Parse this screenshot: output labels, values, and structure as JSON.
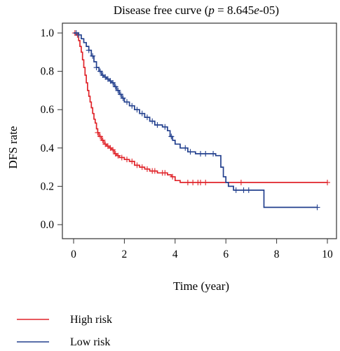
{
  "chart_data": {
    "type": "line",
    "title_prefix": "Disease free curve (",
    "title_p": "p",
    "title_mid": " = 8.645",
    "title_e": "e",
    "title_suffix": "-05)",
    "xlabel": "Time (year)",
    "ylabel": "DFS rate",
    "xlim": [
      0,
      10
    ],
    "ylim": [
      0,
      1
    ],
    "x_ticks": [
      0,
      2,
      4,
      6,
      8,
      10
    ],
    "y_ticks": [
      0.0,
      0.2,
      0.4,
      0.6,
      0.8,
      1.0
    ],
    "x_tick_labels": [
      "0",
      "2",
      "4",
      "6",
      "8",
      "10"
    ],
    "y_tick_labels": [
      "0.0",
      "0.2",
      "0.4",
      "0.6",
      "0.8",
      "1.0"
    ],
    "legend_placement": "bottom-left",
    "series": [
      {
        "name": "High risk",
        "color": "#e0242a",
        "steps": [
          [
            0,
            1.0
          ],
          [
            0.1,
            0.99
          ],
          [
            0.2,
            0.96
          ],
          [
            0.25,
            0.93
          ],
          [
            0.3,
            0.9
          ],
          [
            0.35,
            0.86
          ],
          [
            0.4,
            0.82
          ],
          [
            0.45,
            0.78
          ],
          [
            0.5,
            0.74
          ],
          [
            0.55,
            0.7
          ],
          [
            0.6,
            0.67
          ],
          [
            0.65,
            0.64
          ],
          [
            0.7,
            0.61
          ],
          [
            0.75,
            0.58
          ],
          [
            0.8,
            0.55
          ],
          [
            0.85,
            0.53
          ],
          [
            0.9,
            0.5
          ],
          [
            0.95,
            0.48
          ],
          [
            1.0,
            0.46
          ],
          [
            1.1,
            0.44
          ],
          [
            1.2,
            0.42
          ],
          [
            1.3,
            0.41
          ],
          [
            1.4,
            0.4
          ],
          [
            1.5,
            0.39
          ],
          [
            1.6,
            0.37
          ],
          [
            1.7,
            0.36
          ],
          [
            1.8,
            0.35
          ],
          [
            2.0,
            0.34
          ],
          [
            2.2,
            0.33
          ],
          [
            2.4,
            0.31
          ],
          [
            2.6,
            0.3
          ],
          [
            2.8,
            0.29
          ],
          [
            3.0,
            0.28
          ],
          [
            3.3,
            0.27
          ],
          [
            3.7,
            0.26
          ],
          [
            3.85,
            0.25
          ],
          [
            4.0,
            0.23
          ],
          [
            4.2,
            0.22
          ],
          [
            6.0,
            0.22
          ],
          [
            10.0,
            0.22
          ]
        ],
        "censors": [
          [
            0.05,
            1.0
          ],
          [
            0.15,
            0.99
          ],
          [
            0.95,
            0.48
          ],
          [
            1.05,
            0.46
          ],
          [
            1.15,
            0.44
          ],
          [
            1.25,
            0.42
          ],
          [
            1.35,
            0.41
          ],
          [
            1.45,
            0.4
          ],
          [
            1.55,
            0.39
          ],
          [
            1.65,
            0.37
          ],
          [
            1.75,
            0.36
          ],
          [
            1.9,
            0.35
          ],
          [
            2.1,
            0.34
          ],
          [
            2.3,
            0.33
          ],
          [
            2.5,
            0.31
          ],
          [
            2.7,
            0.3
          ],
          [
            2.9,
            0.29
          ],
          [
            3.1,
            0.28
          ],
          [
            3.2,
            0.28
          ],
          [
            3.5,
            0.27
          ],
          [
            3.6,
            0.27
          ],
          [
            3.9,
            0.25
          ],
          [
            4.5,
            0.22
          ],
          [
            4.7,
            0.22
          ],
          [
            4.9,
            0.22
          ],
          [
            5.0,
            0.22
          ],
          [
            5.2,
            0.22
          ],
          [
            6.6,
            0.22
          ],
          [
            10.0,
            0.22
          ]
        ]
      },
      {
        "name": "Low risk",
        "color": "#23408e",
        "steps": [
          [
            0,
            1.0
          ],
          [
            0.2,
            0.99
          ],
          [
            0.3,
            0.97
          ],
          [
            0.4,
            0.95
          ],
          [
            0.5,
            0.93
          ],
          [
            0.6,
            0.91
          ],
          [
            0.7,
            0.88
          ],
          [
            0.8,
            0.85
          ],
          [
            0.9,
            0.82
          ],
          [
            1.0,
            0.8
          ],
          [
            1.1,
            0.78
          ],
          [
            1.2,
            0.77
          ],
          [
            1.3,
            0.76
          ],
          [
            1.4,
            0.75
          ],
          [
            1.5,
            0.74
          ],
          [
            1.6,
            0.72
          ],
          [
            1.7,
            0.7
          ],
          [
            1.8,
            0.68
          ],
          [
            1.9,
            0.66
          ],
          [
            2.0,
            0.64
          ],
          [
            2.2,
            0.62
          ],
          [
            2.4,
            0.6
          ],
          [
            2.6,
            0.58
          ],
          [
            2.8,
            0.56
          ],
          [
            3.0,
            0.54
          ],
          [
            3.2,
            0.52
          ],
          [
            3.5,
            0.51
          ],
          [
            3.7,
            0.49
          ],
          [
            3.8,
            0.46
          ],
          [
            3.9,
            0.44
          ],
          [
            4.0,
            0.42
          ],
          [
            4.2,
            0.4
          ],
          [
            4.5,
            0.38
          ],
          [
            4.8,
            0.37
          ],
          [
            5.5,
            0.37
          ],
          [
            5.6,
            0.36
          ],
          [
            5.8,
            0.3
          ],
          [
            5.9,
            0.25
          ],
          [
            6.0,
            0.22
          ],
          [
            6.1,
            0.2
          ],
          [
            6.3,
            0.18
          ],
          [
            7.5,
            0.18
          ],
          [
            7.5,
            0.09
          ],
          [
            9.6,
            0.09
          ]
        ],
        "censors": [
          [
            0.1,
            1.0
          ],
          [
            0.2,
            0.99
          ],
          [
            0.6,
            0.91
          ],
          [
            0.75,
            0.88
          ],
          [
            0.9,
            0.82
          ],
          [
            1.05,
            0.8
          ],
          [
            1.15,
            0.78
          ],
          [
            1.25,
            0.77
          ],
          [
            1.35,
            0.76
          ],
          [
            1.45,
            0.75
          ],
          [
            1.55,
            0.74
          ],
          [
            1.65,
            0.72
          ],
          [
            1.75,
            0.7
          ],
          [
            1.85,
            0.68
          ],
          [
            1.95,
            0.66
          ],
          [
            2.1,
            0.64
          ],
          [
            2.3,
            0.62
          ],
          [
            2.5,
            0.6
          ],
          [
            2.7,
            0.58
          ],
          [
            2.9,
            0.56
          ],
          [
            3.1,
            0.54
          ],
          [
            3.3,
            0.52
          ],
          [
            3.6,
            0.51
          ],
          [
            3.85,
            0.46
          ],
          [
            4.4,
            0.4
          ],
          [
            4.6,
            0.38
          ],
          [
            5.0,
            0.37
          ],
          [
            5.2,
            0.37
          ],
          [
            5.5,
            0.37
          ],
          [
            6.4,
            0.18
          ],
          [
            6.7,
            0.18
          ],
          [
            6.9,
            0.18
          ],
          [
            9.6,
            0.09
          ]
        ]
      }
    ]
  }
}
